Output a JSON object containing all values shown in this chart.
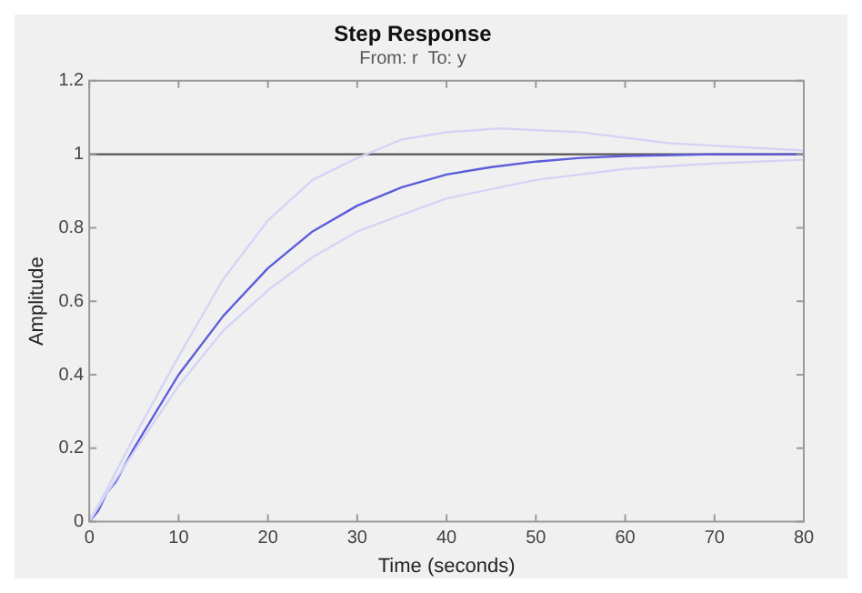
{
  "chart_data": {
    "type": "line",
    "title": "Step Response",
    "subtitle": "From: r  To: y",
    "xlabel": "Time (seconds)",
    "ylabel": "Amplitude",
    "xlim": [
      0,
      80
    ],
    "xticks": [
      0,
      10,
      20,
      30,
      40,
      50,
      60,
      70,
      80
    ],
    "ylim": [
      0,
      1.2
    ],
    "yticks": [
      0,
      0.2,
      0.4,
      0.6,
      0.8,
      1,
      1.2
    ],
    "grid": false,
    "marker": "none",
    "line_style": "solid",
    "series": [
      {
        "color": "#d4d4f6",
        "x": [
          0,
          2,
          5,
          10,
          15,
          20,
          25,
          30,
          35,
          40,
          46,
          55,
          65,
          80
        ],
        "values": [
          0,
          0.09,
          0.23,
          0.45,
          0.66,
          0.82,
          0.93,
          0.99,
          1.04,
          1.06,
          1.07,
          1.06,
          1.03,
          1.01
        ]
      },
      {
        "color": "#d4d4f6",
        "x": [
          0,
          2,
          5,
          10,
          15,
          20,
          25,
          30,
          40,
          50,
          60,
          70,
          80
        ],
        "values": [
          0,
          0.08,
          0.19,
          0.37,
          0.52,
          0.63,
          0.72,
          0.79,
          0.88,
          0.93,
          0.96,
          0.975,
          0.985
        ]
      },
      {
        "color": "#5c5cdc",
        "x": [
          0,
          1,
          2,
          3,
          5,
          10,
          15,
          20,
          25,
          30,
          35,
          40,
          45,
          50,
          55,
          60,
          70,
          80
        ],
        "values": [
          0,
          0.03,
          0.08,
          0.11,
          0.2,
          0.4,
          0.56,
          0.69,
          0.79,
          0.86,
          0.91,
          0.945,
          0.965,
          0.98,
          0.99,
          0.995,
          1,
          1
        ]
      }
    ],
    "ref_lines": [
      {
        "axis": "y",
        "value": 1,
        "color": "#555555"
      }
    ]
  }
}
